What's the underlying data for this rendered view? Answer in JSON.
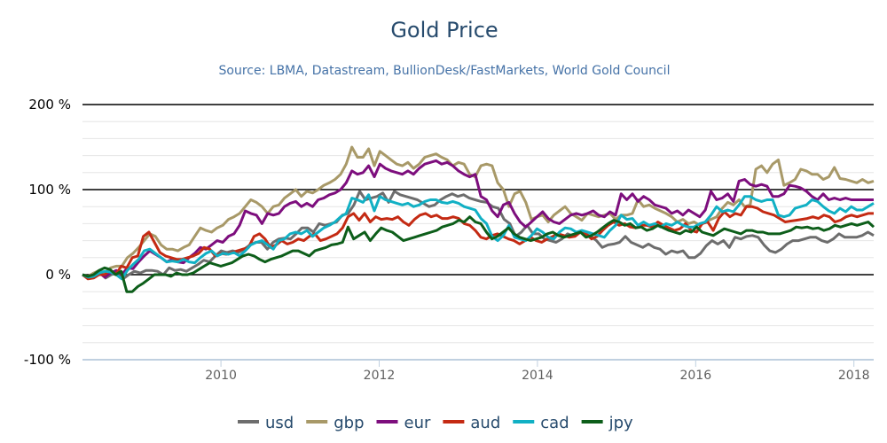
{
  "chart_data": {
    "type": "line",
    "title": "Gold Price",
    "subtitle": "Source: LBMA, Datastream, BullionDesk/FastMarkets, World Gold Council",
    "xlabel": "",
    "ylabel": "",
    "x_start": 2008.25,
    "x_step_years": 0.08333,
    "xlim": [
      2008.25,
      2018.25
    ],
    "ylim": [
      -100,
      200
    ],
    "yticks": [
      -100,
      0,
      100,
      200
    ],
    "ytick_labels": [
      "-100 %",
      "0 %",
      "100 %",
      "200 %"
    ],
    "xticks": [
      2010,
      2012,
      2014,
      2016,
      2018
    ],
    "xtick_labels": [
      "2010",
      "2012",
      "2014",
      "2016",
      "2018"
    ],
    "grid": true,
    "legend_position": "bottom",
    "series": [
      {
        "name": "usd",
        "color": "#6d6d6d",
        "values": [
          0,
          -3,
          -1,
          3,
          -4,
          0,
          3,
          -5,
          0,
          4,
          2,
          5,
          5,
          4,
          0,
          8,
          5,
          6,
          4,
          8,
          12,
          17,
          15,
          22,
          28,
          26,
          28,
          26,
          30,
          35,
          38,
          38,
          30,
          38,
          42,
          43,
          42,
          48,
          55,
          55,
          50,
          60,
          58,
          60,
          62,
          70,
          72,
          82,
          98,
          88,
          90,
          92,
          96,
          85,
          98,
          94,
          92,
          90,
          88,
          84,
          80,
          82,
          88,
          92,
          95,
          92,
          94,
          90,
          88,
          86,
          85,
          80,
          78,
          65,
          60,
          45,
          50,
          58,
          48,
          48,
          42,
          40,
          38,
          42,
          48,
          45,
          50,
          48,
          45,
          40,
          32,
          35,
          36,
          38,
          45,
          38,
          35,
          32,
          36,
          32,
          30,
          24,
          28,
          26,
          28,
          20,
          20,
          25,
          34,
          40,
          36,
          40,
          32,
          44,
          42,
          45,
          46,
          44,
          35,
          28,
          26,
          30,
          36,
          40,
          40,
          42,
          44,
          44,
          40,
          38,
          42,
          48,
          44,
          44,
          44,
          46,
          50,
          46
        ]
      },
      {
        "name": "gbp",
        "color": "#a89968",
        "values": [
          0,
          -2,
          2,
          5,
          2,
          8,
          10,
          10,
          20,
          25,
          32,
          40,
          48,
          45,
          35,
          30,
          30,
          28,
          32,
          35,
          45,
          55,
          52,
          50,
          55,
          58,
          65,
          68,
          72,
          80,
          88,
          85,
          80,
          72,
          80,
          82,
          90,
          95,
          100,
          92,
          98,
          96,
          100,
          105,
          108,
          112,
          118,
          130,
          150,
          138,
          138,
          148,
          128,
          145,
          140,
          135,
          130,
          128,
          132,
          125,
          130,
          138,
          140,
          142,
          138,
          135,
          128,
          132,
          130,
          118,
          115,
          128,
          130,
          128,
          108,
          100,
          80,
          95,
          98,
          85,
          65,
          68,
          70,
          62,
          70,
          75,
          80,
          72,
          68,
          64,
          72,
          70,
          68,
          70,
          72,
          65,
          70,
          70,
          72,
          88,
          80,
          82,
          78,
          75,
          72,
          68,
          62,
          65,
          60,
          62,
          58,
          62,
          65,
          68,
          78,
          85,
          82,
          88,
          80,
          82,
          124,
          128,
          120,
          130,
          135,
          105,
          108,
          112,
          124,
          122,
          118,
          118,
          112,
          115,
          126,
          113,
          112,
          110,
          108,
          112,
          108,
          110
        ]
      },
      {
        "name": "eur",
        "color": "#7d0e7d",
        "values": [
          0,
          -3,
          -1,
          2,
          -3,
          2,
          5,
          0,
          8,
          7,
          15,
          22,
          28,
          24,
          20,
          15,
          18,
          15,
          14,
          20,
          25,
          32,
          30,
          35,
          40,
          38,
          45,
          48,
          58,
          75,
          72,
          70,
          60,
          72,
          70,
          72,
          80,
          84,
          86,
          80,
          84,
          80,
          88,
          90,
          94,
          96,
          100,
          108,
          122,
          118,
          120,
          128,
          115,
          130,
          125,
          122,
          120,
          118,
          122,
          118,
          125,
          130,
          132,
          134,
          130,
          132,
          128,
          122,
          118,
          115,
          118,
          92,
          88,
          75,
          68,
          82,
          85,
          72,
          62,
          56,
          62,
          68,
          74,
          66,
          62,
          60,
          65,
          70,
          72,
          70,
          72,
          75,
          70,
          68,
          74,
          70,
          95,
          88,
          95,
          86,
          92,
          88,
          82,
          80,
          78,
          72,
          75,
          70,
          76,
          72,
          68,
          76,
          98,
          88,
          90,
          95,
          86,
          110,
          112,
          106,
          104,
          106,
          104,
          92,
          92,
          95,
          105,
          104,
          102,
          98,
          92,
          88,
          95,
          88,
          90,
          88,
          90,
          88,
          88,
          88,
          88,
          88
        ]
      },
      {
        "name": "aud",
        "color": "#c42a13",
        "values": [
          0,
          -5,
          -4,
          0,
          0,
          5,
          0,
          10,
          8,
          20,
          22,
          45,
          50,
          38,
          26,
          22,
          20,
          18,
          18,
          20,
          22,
          25,
          32,
          30,
          22,
          25,
          24,
          26,
          28,
          30,
          32,
          45,
          48,
          42,
          32,
          35,
          40,
          36,
          38,
          42,
          40,
          45,
          48,
          40,
          42,
          45,
          48,
          55,
          68,
          72,
          64,
          72,
          62,
          68,
          65,
          66,
          65,
          68,
          62,
          58,
          65,
          70,
          72,
          68,
          70,
          66,
          66,
          68,
          66,
          60,
          58,
          52,
          44,
          42,
          46,
          48,
          45,
          42,
          40,
          36,
          40,
          44,
          40,
          38,
          42,
          45,
          48,
          46,
          44,
          45,
          50,
          48,
          42,
          45,
          52,
          58,
          62,
          58,
          60,
          56,
          55,
          58,
          58,
          56,
          62,
          58,
          55,
          52,
          54,
          60,
          52,
          50,
          60,
          62,
          52,
          66,
          74,
          68,
          72,
          70,
          80,
          80,
          78,
          74,
          72,
          70,
          66,
          62,
          63,
          64,
          65,
          66,
          68,
          66,
          70,
          68,
          62,
          64,
          68,
          70,
          68,
          70,
          72,
          72
        ]
      },
      {
        "name": "cad",
        "color": "#11b0c4",
        "values": [
          0,
          -3,
          -2,
          2,
          4,
          3,
          0,
          -5,
          5,
          12,
          18,
          28,
          30,
          25,
          20,
          15,
          16,
          15,
          18,
          15,
          14,
          20,
          25,
          28,
          22,
          25,
          24,
          26,
          22,
          28,
          35,
          38,
          40,
          35,
          30,
          40,
          42,
          48,
          50,
          48,
          52,
          45,
          50,
          55,
          58,
          62,
          68,
          72,
          90,
          88,
          85,
          94,
          75,
          92,
          88,
          86,
          84,
          82,
          84,
          80,
          82,
          86,
          88,
          88,
          85,
          84,
          86,
          84,
          80,
          78,
          76,
          66,
          60,
          45,
          40,
          46,
          58,
          44,
          42,
          40,
          46,
          54,
          50,
          44,
          42,
          50,
          55,
          54,
          50,
          52,
          50,
          48,
          46,
          44,
          52,
          58,
          70,
          65,
          66,
          58,
          62,
          58,
          60,
          56,
          60,
          58,
          62,
          58,
          56,
          56,
          60,
          62,
          70,
          80,
          74,
          76,
          74,
          82,
          92,
          92,
          88,
          86,
          88,
          88,
          70,
          68,
          70,
          78,
          80,
          82,
          88,
          86,
          80,
          75,
          72,
          78,
          74,
          80,
          76,
          76,
          80,
          84
        ]
      },
      {
        "name": "jpy",
        "color": "#0d5e1a",
        "values": [
          0,
          -2,
          0,
          5,
          8,
          6,
          0,
          4,
          -20,
          -20,
          -14,
          -10,
          -5,
          0,
          0,
          0,
          -2,
          2,
          0,
          0,
          2,
          6,
          10,
          14,
          12,
          10,
          12,
          14,
          18,
          22,
          24,
          22,
          18,
          15,
          18,
          20,
          22,
          25,
          28,
          28,
          25,
          22,
          28,
          30,
          32,
          35,
          36,
          38,
          56,
          42,
          46,
          50,
          40,
          48,
          55,
          52,
          50,
          45,
          40,
          42,
          44,
          46,
          48,
          50,
          52,
          56,
          58,
          60,
          64,
          62,
          68,
          62,
          60,
          50,
          42,
          45,
          50,
          55,
          48,
          44,
          42,
          40,
          42,
          44,
          48,
          50,
          46,
          44,
          46,
          48,
          50,
          44,
          46,
          50,
          55,
          60,
          64,
          62,
          58,
          60,
          55,
          56,
          52,
          54,
          58,
          55,
          52,
          50,
          48,
          52,
          50,
          56,
          50,
          48,
          46,
          50,
          54,
          52,
          50,
          48,
          52,
          52,
          50,
          50,
          48,
          48,
          48,
          50,
          52,
          56,
          55,
          56,
          54,
          55,
          52,
          54,
          58,
          56,
          58,
          60,
          58,
          60,
          62,
          56
        ]
      }
    ]
  }
}
